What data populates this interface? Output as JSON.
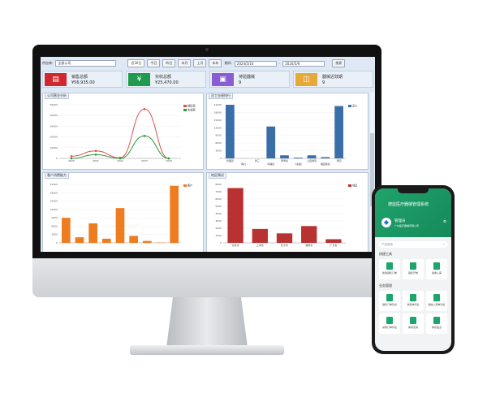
{
  "toolbar": {
    "supplier_label": "供应商:",
    "supplier_value": "全部公司",
    "quick": [
      "近30日",
      "今日",
      "昨日",
      "本月",
      "上月",
      "本年"
    ],
    "period_label": "期间:",
    "date_from": "2024/5/10",
    "date_sep": "-",
    "date_to": "2024/5/9",
    "search": "搜索"
  },
  "cards": [
    {
      "title": "销售总额",
      "value": "¥56,935.00",
      "color": "#d0282e",
      "icon": "receipt-icon"
    },
    {
      "title": "实收总额",
      "value": "¥25,470.00",
      "color": "#1f9a4f",
      "icon": "yen-icon"
    },
    {
      "title": "待验器械",
      "value": "9",
      "color": "#8a5cd6",
      "icon": "box-icon"
    },
    {
      "title": "器械近效期",
      "value": "9",
      "color": "#e7a83a",
      "icon": "box-clock-icon"
    }
  ],
  "chart_data": [
    {
      "type": "line",
      "title": "公司营业分析",
      "categories": [
        "2020",
        "2021",
        "2022",
        "2023",
        "2024"
      ],
      "ylim": [
        0,
        50000
      ],
      "yticks": [
        "0",
        "10000",
        "20000",
        "30000",
        "40000",
        "50000"
      ],
      "legend": "top-right",
      "series": [
        {
          "name": "销售额",
          "color": "#d9534f",
          "values": [
            2000,
            7000,
            500,
            46000,
            0
          ]
        },
        {
          "name": "实收额",
          "color": "#2e9a3a",
          "values": [
            0,
            3500,
            0,
            21000,
            0
          ]
        }
      ]
    },
    {
      "type": "bar",
      "title": "员工业绩排行",
      "categories": [
        "管理员",
        "喝六",
        "张三",
        "叫福德",
        "李司机",
        "小赵赵",
        "上官绿萼",
        "福园素好",
        "李四"
      ],
      "ylim": [
        0,
        21000
      ],
      "yticks": [
        "0",
        "3000",
        "6000",
        "9000",
        "12000",
        "15000",
        "18000",
        "21000"
      ],
      "legend": "top-right",
      "series": [
        {
          "name": "员工",
          "color": "#3a6ea8",
          "values": [
            21000,
            0,
            0,
            12500,
            1200,
            300,
            1200,
            500,
            20500
          ]
        }
      ]
    },
    {
      "type": "bar",
      "title": "客户消费能力",
      "categories": [
        "",
        "",
        "",
        "",
        "",
        "",
        "",
        "",
        ""
      ],
      "ylim": [
        0,
        21000
      ],
      "yticks": [
        "0",
        "3000",
        "6000",
        "9000",
        "12000",
        "15000",
        "18000",
        "21000"
      ],
      "legend": "top-right",
      "series": [
        {
          "name": "客户",
          "color": "#ee7d22",
          "values": [
            9000,
            2000,
            7000,
            1500,
            12500,
            2500,
            700,
            100,
            20500
          ]
        }
      ]
    },
    {
      "type": "bar",
      "title": "地区情况",
      "categories": [
        "北京市",
        "上海市",
        "长沙市",
        "湖南省",
        "广东省"
      ],
      "ylim": [
        0,
        8000
      ],
      "yticks": [
        "0",
        "1000",
        "2000",
        "3000",
        "4000",
        "5000",
        "6000",
        "7000",
        "8000"
      ],
      "legend": "top-right",
      "series": [
        {
          "name": "地区",
          "color": "#b83232",
          "values": [
            7500,
            1900,
            1300,
            2300,
            500
          ]
        }
      ]
    }
  ],
  "phone": {
    "title": "德蓝医疗器械管理系统",
    "user": "管理员",
    "company": "广州医疗器械有限公司",
    "search_placeholder": "产品搜索",
    "quick_title": "快捷工具",
    "quick": [
      "新建销售订单",
      "销售开单",
      "验收入库"
    ],
    "biz_title": "业务管理",
    "biz": [
      "销售订单列表",
      "销售单列表",
      "验收入库单列表",
      "采购订单列表",
      "库存查询",
      "库存盘点"
    ]
  }
}
